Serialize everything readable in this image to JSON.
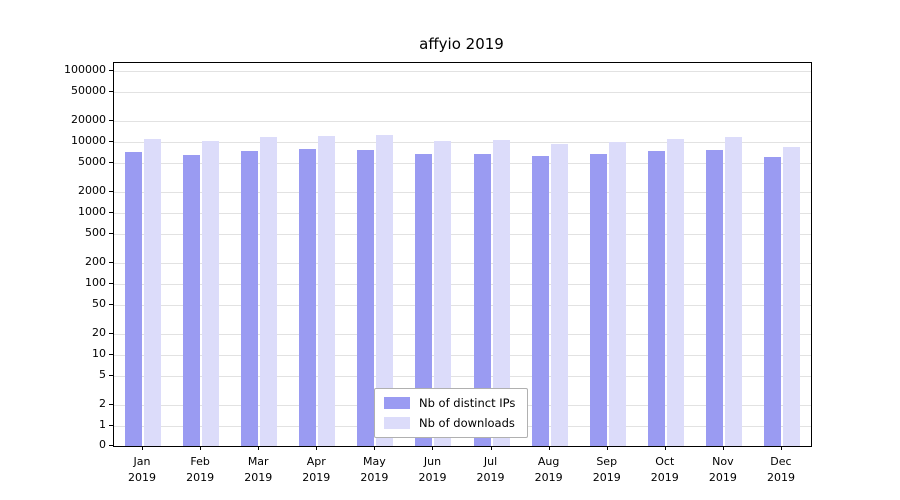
{
  "title": "affyio 2019",
  "chart_data": {
    "type": "bar",
    "title": "affyio 2019",
    "yscale": "log",
    "grid": true,
    "legend_position": "bottom-center",
    "ylim": [
      0,
      100000
    ],
    "yticks": [
      0,
      1,
      2,
      5,
      10,
      20,
      50,
      100,
      200,
      500,
      1000,
      2000,
      5000,
      10000,
      20000,
      50000,
      100000
    ],
    "categories": [
      "Jan",
      "Feb",
      "Mar",
      "Apr",
      "May",
      "Jun",
      "Jul",
      "Aug",
      "Sep",
      "Oct",
      "Nov",
      "Dec"
    ],
    "year": "2019",
    "series": [
      {
        "name": "Nb of distinct IPs",
        "color": "#9a9bf2",
        "values": [
          7200,
          6600,
          7400,
          7900,
          7700,
          6700,
          6700,
          6300,
          6700,
          7400,
          7600,
          6100
        ]
      },
      {
        "name": "Nb of downloads",
        "color": "#dcdcfa",
        "values": [
          11100,
          10200,
          11900,
          12000,
          12500,
          10300,
          10600,
          9400,
          9900,
          11200,
          11700,
          8600
        ]
      }
    ]
  }
}
